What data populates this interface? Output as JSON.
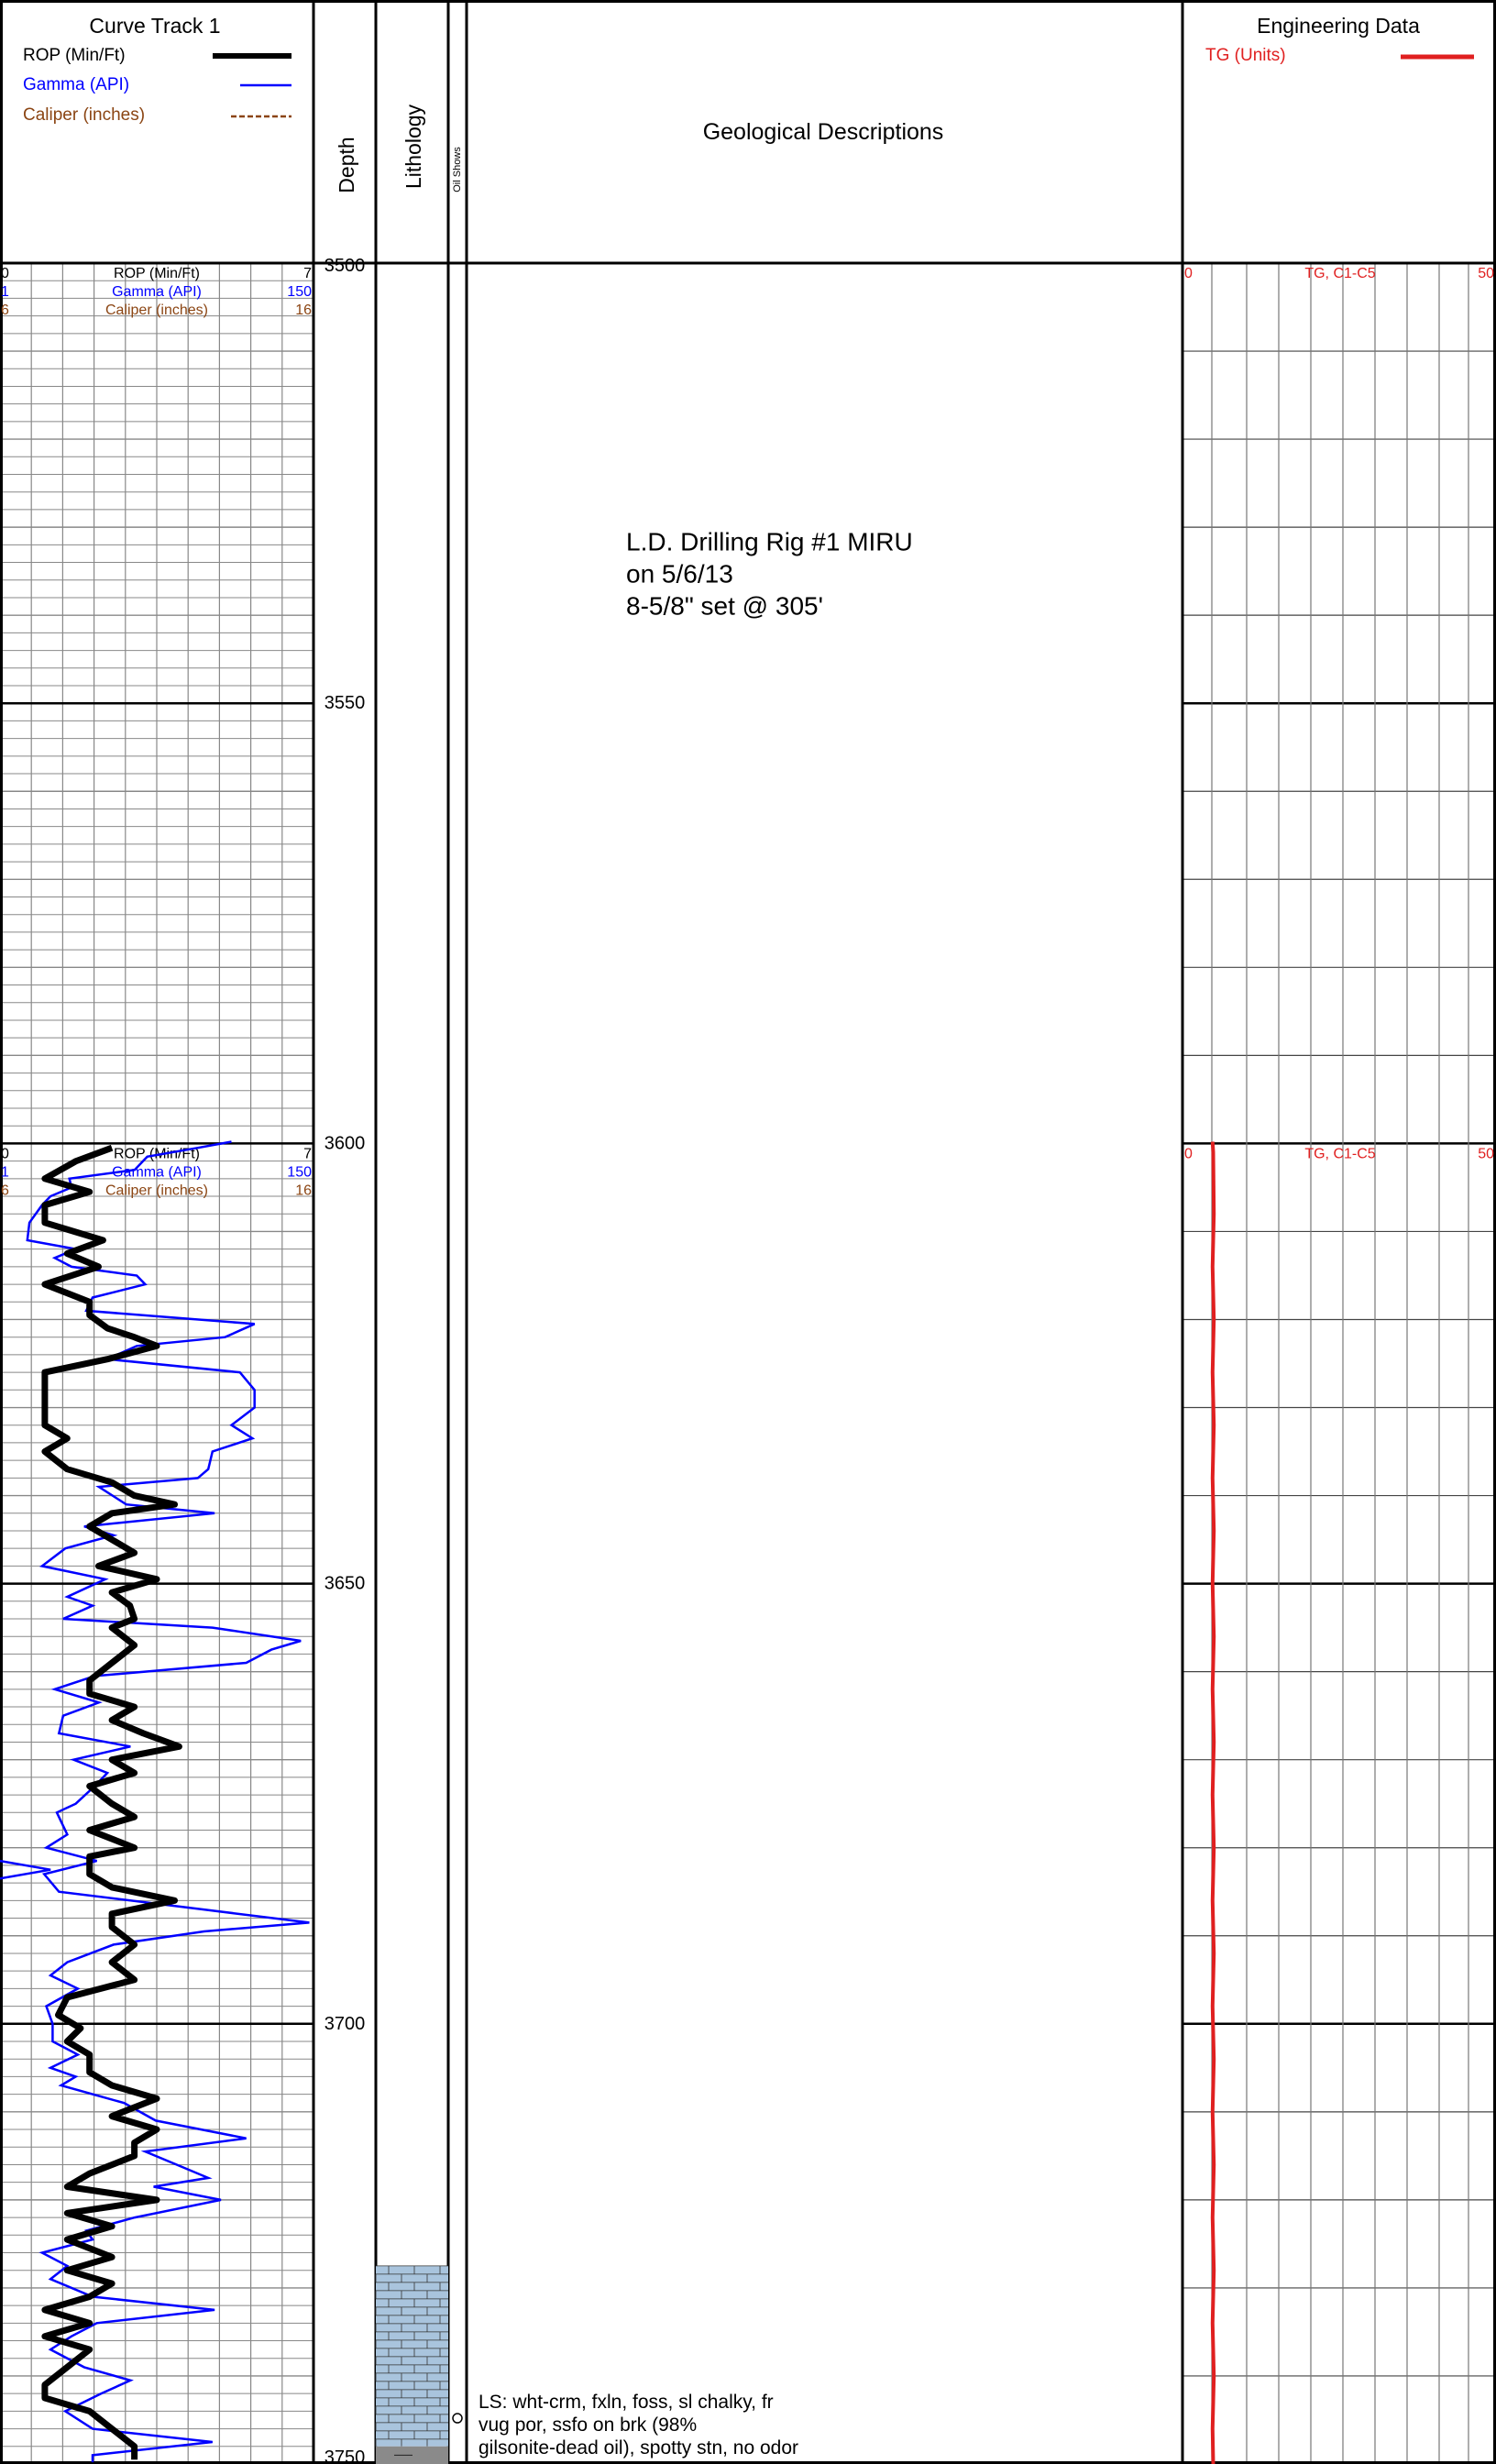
{
  "header": {
    "curve_track_title": "Curve Track 1",
    "legend": [
      {
        "label": "ROP (Min/Ft)",
        "color": "#000000",
        "style": "solid-thick"
      },
      {
        "label": "Gamma (API)",
        "color": "#0000ff",
        "style": "solid"
      },
      {
        "label": "Caliper (inches)",
        "color": "#8b4513",
        "style": "dashed"
      }
    ],
    "depth_label": "Depth",
    "lithology_label": "Lithology",
    "oil_shows_label": "Oil Shows",
    "geo_desc_label": "Geological Descriptions",
    "engineering_title": "Engineering Data",
    "tg_legend": {
      "label": "TG (Units)",
      "color": "#e02020"
    }
  },
  "colors": {
    "rop": "#000000",
    "gamma": "#0000ff",
    "caliper": "#8b4513",
    "tg": "#e02020",
    "limestone_fill": "#a9c4dd",
    "grid_minor": "#888888"
  },
  "chart_data": {
    "type": "line",
    "depth_range": [
      3500,
      3750
    ],
    "depth_unit": "ft",
    "depth_labels": [
      "3500",
      "3550",
      "3600",
      "3650",
      "3700",
      "3750"
    ],
    "scale_rows": [
      {
        "depth": 3500,
        "rop": [
          "0",
          "ROP (Min/Ft)",
          "7"
        ],
        "gamma": [
          "1",
          "Gamma (API)",
          "150"
        ],
        "caliper": [
          "6",
          "Caliper (inches)",
          "16"
        ],
        "tg": [
          "0",
          "TG, C1-C5",
          "50"
        ]
      },
      {
        "depth": 3600,
        "rop": [
          "0",
          "ROP (Min/Ft)",
          "7"
        ],
        "gamma": [
          "1",
          "Gamma (API)",
          "150"
        ],
        "caliper": [
          "6",
          "Caliper (inches)",
          "16"
        ],
        "tg": [
          "0",
          "TG, C1-C5",
          "50"
        ]
      }
    ],
    "series": [
      {
        "name": "ROP (Min/Ft)",
        "xrange": [
          0,
          7
        ],
        "points": [
          [
            3600.5,
            2.5
          ],
          [
            3602,
            1.7
          ],
          [
            3604,
            1.0
          ],
          [
            3605.5,
            2.0
          ],
          [
            3607,
            1.0
          ],
          [
            3609,
            1.0
          ],
          [
            3611,
            2.3
          ],
          [
            3612.5,
            1.5
          ],
          [
            3614,
            2.2
          ],
          [
            3616,
            1.0
          ],
          [
            3618,
            2.0
          ],
          [
            3619.5,
            2.0
          ],
          [
            3621,
            2.4
          ],
          [
            3622,
            3.0
          ],
          [
            3623,
            3.5
          ],
          [
            3624.5,
            2.4
          ],
          [
            3626,
            1.0
          ],
          [
            3628,
            1.0
          ],
          [
            3630,
            1.0
          ],
          [
            3632,
            1.0
          ],
          [
            3633.5,
            1.5
          ],
          [
            3635,
            1.0
          ],
          [
            3637,
            1.5
          ],
          [
            3638.5,
            2.5
          ],
          [
            3640,
            3.0
          ],
          [
            3641,
            3.9
          ],
          [
            3642,
            2.5
          ],
          [
            3643.5,
            2.0
          ],
          [
            3645,
            2.5
          ],
          [
            3646.5,
            3.0
          ],
          [
            3648,
            2.2
          ],
          [
            3649.5,
            3.5
          ],
          [
            3651,
            2.5
          ],
          [
            3652.5,
            2.9
          ],
          [
            3654,
            3.0
          ],
          [
            3655,
            2.5
          ],
          [
            3657,
            3.0
          ],
          [
            3659,
            2.5
          ],
          [
            3661,
            2.0
          ],
          [
            3662.5,
            2.0
          ],
          [
            3664,
            3.0
          ],
          [
            3665.5,
            2.5
          ],
          [
            3667,
            3.2
          ],
          [
            3668.5,
            4.0
          ],
          [
            3670,
            2.5
          ],
          [
            3671.5,
            3.0
          ],
          [
            3673,
            2.0
          ],
          [
            3675,
            2.5
          ],
          [
            3676.5,
            3.0
          ],
          [
            3678,
            2.0
          ],
          [
            3680,
            3.0
          ],
          [
            3681,
            2.0
          ],
          [
            3683,
            2.0
          ],
          [
            3684.5,
            2.5
          ],
          [
            3686,
            3.9
          ],
          [
            3687.5,
            2.5
          ],
          [
            3689,
            2.5
          ],
          [
            3691,
            3.0
          ],
          [
            3693,
            2.5
          ],
          [
            3695,
            3.0
          ],
          [
            3697,
            1.5
          ],
          [
            3699,
            1.3
          ],
          [
            3700.5,
            1.8
          ],
          [
            3702,
            1.5
          ],
          [
            3703.5,
            2.0
          ],
          [
            3705.5,
            2.0
          ],
          [
            3707,
            2.5
          ],
          [
            3708.5,
            3.5
          ],
          [
            3710.5,
            2.5
          ],
          [
            3712,
            3.5
          ],
          [
            3713.5,
            3.0
          ],
          [
            3715,
            3.0
          ],
          [
            3717,
            2.0
          ],
          [
            3718.5,
            1.5
          ],
          [
            3720,
            3.5
          ],
          [
            3721.5,
            1.5
          ],
          [
            3723,
            2.5
          ],
          [
            3724.5,
            1.5
          ],
          [
            3726.5,
            2.5
          ],
          [
            3728,
            1.5
          ],
          [
            3729.5,
            2.5
          ],
          [
            3731,
            2.0
          ],
          [
            3732.5,
            1.0
          ],
          [
            3734,
            2.0
          ],
          [
            3735.5,
            1.0
          ],
          [
            3737,
            2.0
          ],
          [
            3739,
            1.5
          ],
          [
            3741,
            1.0
          ],
          [
            3742.5,
            1.0
          ],
          [
            3744,
            2.0
          ],
          [
            3746,
            2.5
          ],
          [
            3748,
            3.0
          ],
          [
            3749.5,
            3.0
          ]
        ]
      },
      {
        "name": "Gamma (API)",
        "xrange": [
          1,
          150
        ],
        "points": [
          [
            3599.8,
            111
          ],
          [
            3600.5,
            95
          ],
          [
            3601.5,
            71
          ],
          [
            3603,
            65
          ],
          [
            3604,
            34
          ],
          [
            3605,
            35
          ],
          [
            3606,
            25
          ],
          [
            3607,
            21
          ],
          [
            3609,
            15
          ],
          [
            3611,
            14
          ],
          [
            3612,
            37
          ],
          [
            3613,
            27
          ],
          [
            3614,
            35
          ],
          [
            3615,
            66
          ],
          [
            3616,
            70
          ],
          [
            3617.5,
            45
          ],
          [
            3619,
            42
          ],
          [
            3620.5,
            122
          ],
          [
            3622,
            108
          ],
          [
            3623,
            66
          ],
          [
            3624.5,
            52
          ],
          [
            3626,
            115
          ],
          [
            3628,
            122
          ],
          [
            3630,
            122
          ],
          [
            3632,
            111
          ],
          [
            3633.5,
            121
          ],
          [
            3635,
            102
          ],
          [
            3637,
            100
          ],
          [
            3638,
            95
          ],
          [
            3639,
            48
          ],
          [
            3641,
            61
          ],
          [
            3642,
            103
          ],
          [
            3643.5,
            41
          ],
          [
            3644.5,
            55
          ],
          [
            3646,
            32
          ],
          [
            3648,
            21
          ],
          [
            3649.5,
            51
          ],
          [
            3651.5,
            33
          ],
          [
            3652.5,
            45
          ],
          [
            3654,
            31
          ],
          [
            3655,
            102
          ],
          [
            3656.5,
            144
          ],
          [
            3657.5,
            130
          ],
          [
            3659,
            118
          ],
          [
            3660.5,
            46
          ],
          [
            3662,
            27
          ],
          [
            3663.5,
            48
          ],
          [
            3665,
            31
          ],
          [
            3667,
            29
          ],
          [
            3668.5,
            63
          ],
          [
            3670,
            36
          ],
          [
            3671.5,
            52
          ],
          [
            3673,
            46
          ],
          [
            3675,
            37
          ],
          [
            3676,
            28
          ],
          [
            3678.5,
            33
          ],
          [
            3680,
            23
          ],
          [
            3681.5,
            47
          ],
          [
            3683,
            22
          ],
          [
            3685,
            29
          ],
          [
            3687,
            97
          ],
          [
            3688.5,
            148
          ],
          [
            3689.5,
            98
          ],
          [
            3691,
            55
          ],
          [
            3693,
            33
          ],
          [
            3694.5,
            25
          ],
          [
            3696,
            38
          ],
          [
            3698,
            23
          ],
          [
            3700,
            26
          ],
          [
            3702,
            26
          ],
          [
            3703.5,
            38
          ],
          [
            3705,
            25
          ],
          [
            3706,
            37
          ],
          [
            3707,
            30
          ],
          [
            3709,
            60
          ],
          [
            3711,
            75
          ],
          [
            3713,
            118
          ],
          [
            3714.5,
            70
          ],
          [
            3716,
            85
          ],
          [
            3717.5,
            100
          ],
          [
            3718.5,
            74
          ],
          [
            3720,
            106
          ],
          [
            3722,
            65
          ],
          [
            3723.5,
            42
          ],
          [
            3724.5,
            45
          ],
          [
            3726,
            21
          ],
          [
            3727.5,
            33
          ],
          [
            3729,
            25
          ],
          [
            3731,
            45
          ],
          [
            3732.5,
            103
          ],
          [
            3734,
            47
          ],
          [
            3735.5,
            35
          ],
          [
            3737,
            25
          ],
          [
            3739,
            41
          ],
          [
            3740.5,
            63
          ],
          [
            3742,
            49
          ],
          [
            3744,
            32
          ],
          [
            3746,
            45
          ],
          [
            3747.5,
            102
          ],
          [
            3749,
            45
          ],
          [
            3749.8,
            45
          ]
        ],
        "offscale_left_spike": [
          [
            3681.5,
            1
          ],
          [
            3682.5,
            25
          ],
          [
            3683.5,
            1
          ]
        ]
      },
      {
        "name": "TG, C1-C5",
        "xrange": [
          0,
          50
        ],
        "points": [
          [
            3599.8,
            4.8
          ],
          [
            3601,
            4.9
          ],
          [
            3608,
            5.0
          ],
          [
            3614,
            4.8
          ],
          [
            3620,
            5.0
          ],
          [
            3626,
            4.8
          ],
          [
            3632,
            5.0
          ],
          [
            3638,
            4.8
          ],
          [
            3644,
            5.0
          ],
          [
            3650,
            4.8
          ],
          [
            3656,
            5.0
          ],
          [
            3662,
            4.8
          ],
          [
            3668,
            5.0
          ],
          [
            3674,
            4.8
          ],
          [
            3680,
            5.0
          ],
          [
            3686,
            4.8
          ],
          [
            3692,
            5.0
          ],
          [
            3698,
            4.8
          ],
          [
            3704,
            5.0
          ],
          [
            3710,
            4.8
          ],
          [
            3716,
            5.0
          ],
          [
            3722,
            4.8
          ],
          [
            3728,
            5.0
          ],
          [
            3734,
            4.8
          ],
          [
            3740,
            5.0
          ],
          [
            3746,
            4.8
          ],
          [
            3750,
            4.9
          ]
        ]
      }
    ],
    "lithology": [
      {
        "top": 3727.5,
        "base": 3748.0,
        "type": "limestone"
      },
      {
        "top": 3748.0,
        "base": 3750.0,
        "type": "shale"
      }
    ],
    "annotations": [
      {
        "depth": 3531,
        "lines": [
          "L.D. Drilling Rig #1 MIRU",
          "on 5/6/13",
          "8-5/8\" set @ 305'"
        ]
      },
      {
        "depth": 3743,
        "lines": [
          "LS: wht-crm, fxln, foss, sl chalky, fr",
          "vug por, ssfo on brk (98%",
          "gilsonite-dead oil), spotty stn, no odor"
        ]
      }
    ],
    "oil_show_marker_depth": 3744.8
  }
}
